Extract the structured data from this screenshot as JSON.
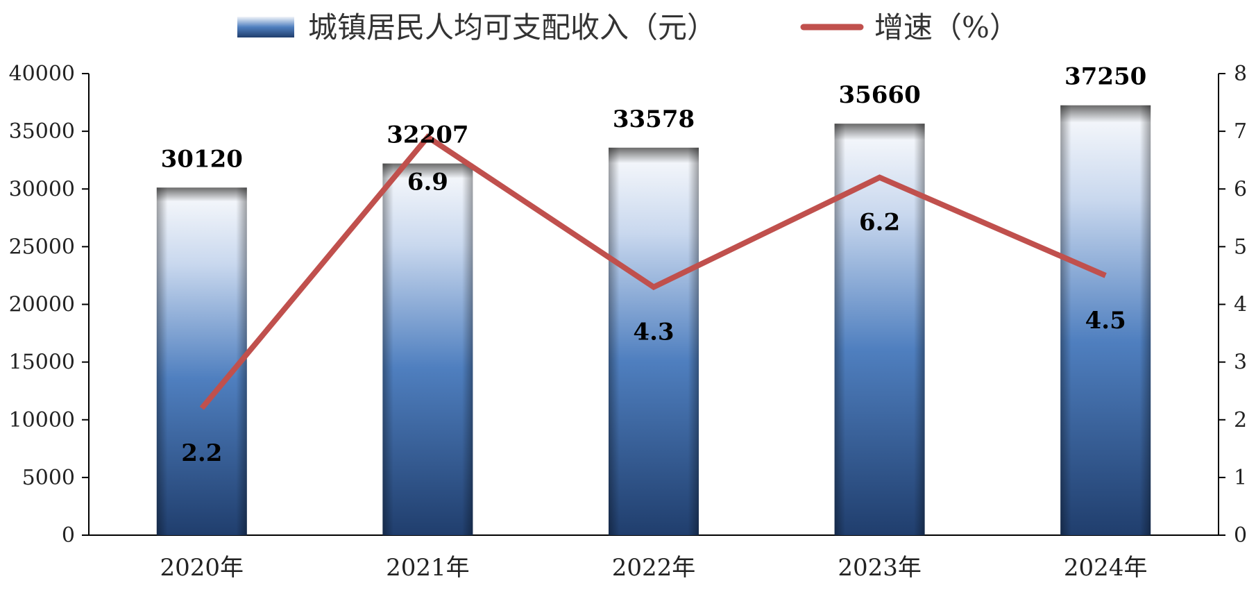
{
  "chart_data": {
    "type": "bar",
    "categories": [
      "2020年",
      "2021年",
      "2022年",
      "2023年",
      "2024年"
    ],
    "series": [
      {
        "name": "城镇居民人均可支配收入（元）",
        "type": "bar",
        "axis": "left",
        "values": [
          30120,
          32207,
          33578,
          35660,
          37250
        ],
        "labels": [
          "30120",
          "32207",
          "33578",
          "35660",
          "37250"
        ]
      },
      {
        "name": "增速（%）",
        "type": "line",
        "axis": "right",
        "values": [
          2.2,
          6.9,
          4.3,
          6.2,
          4.5
        ],
        "labels": [
          "2.2",
          "6.9",
          "4.3",
          "6.2",
          "4.5"
        ]
      }
    ],
    "y_left": {
      "min": 0,
      "max": 40000,
      "ticks": [
        "0",
        "5000",
        "10000",
        "15000",
        "20000",
        "25000",
        "30000",
        "35000",
        "40000"
      ]
    },
    "y_right": {
      "min": 0,
      "max": 8,
      "ticks": [
        "0",
        "1",
        "2",
        "3",
        "4",
        "5",
        "6",
        "7",
        "8"
      ]
    },
    "legend": "top-center",
    "grid": false,
    "colors": {
      "bar_dark": "#2b4d80",
      "bar_mid": "#4f7fbf",
      "bar_light": "#e6eef8",
      "line": "#c0504d",
      "axis": "#000000"
    }
  }
}
